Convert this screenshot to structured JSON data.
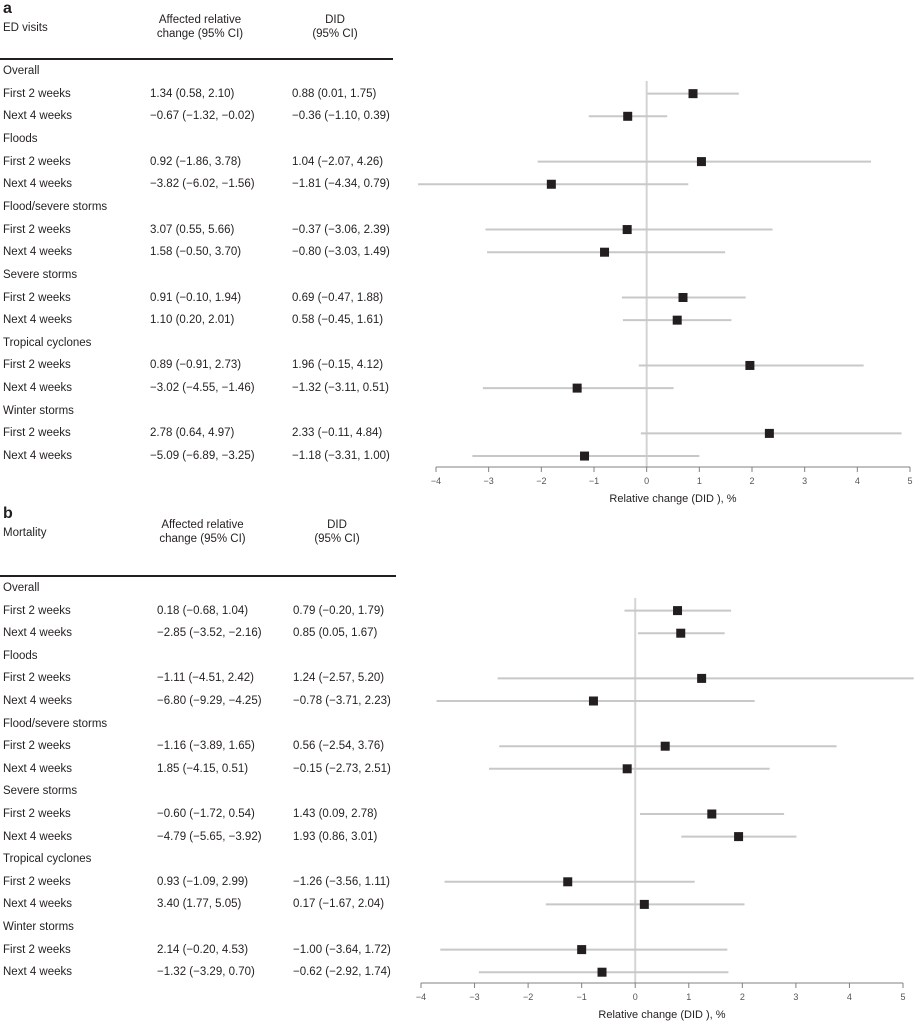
{
  "chart_data": [
    {
      "type": "forest",
      "panel": "a",
      "outcome": "ED visits",
      "columns": [
        "Affected relative change (95% CI)",
        "DID (95% CI)"
      ],
      "col1_header": [
        "Affected relative",
        "change (95% CI)"
      ],
      "col2_header": [
        "DID",
        "(95% CI)"
      ],
      "xlabel": "Relative change (DID ), %",
      "xlim": [
        -4,
        5
      ],
      "xticks": [
        "−4",
        "−3",
        "−2",
        "−1",
        "0",
        "1",
        "2",
        "3",
        "4",
        "5"
      ],
      "xtick_values": [
        -4,
        -3,
        -2,
        -1,
        0,
        1,
        2,
        3,
        4,
        5
      ],
      "reference_line": 0,
      "groups": [
        {
          "name": "Overall",
          "rows": [
            {
              "label": "First 2 weeks",
              "affected": "1.34 (0.58, 2.10)",
              "did": "0.88 (0.01, 1.75)",
              "est": 0.88,
              "lo": 0.01,
              "hi": 1.75
            },
            {
              "label": "Next 4 weeks",
              "affected": "−0.67 (−1.32, −0.02)",
              "did": "−0.36 (−1.10, 0.39)",
              "est": -0.36,
              "lo": -1.1,
              "hi": 0.39
            }
          ]
        },
        {
          "name": "Floods",
          "rows": [
            {
              "label": "First 2 weeks",
              "affected": "0.92 (−1.86, 3.78)",
              "did": "1.04 (−2.07, 4.26)",
              "est": 1.04,
              "lo": -2.07,
              "hi": 4.26
            },
            {
              "label": "Next 4 weeks",
              "affected": "−3.82 (−6.02, −1.56)",
              "did": "−1.81 (−4.34, 0.79)",
              "est": -1.81,
              "lo": -4.34,
              "hi": 0.79
            }
          ]
        },
        {
          "name": "Flood/severe storms",
          "rows": [
            {
              "label": "First 2 weeks",
              "affected": "3.07 (0.55, 5.66)",
              "did": "−0.37 (−3.06, 2.39)",
              "est": -0.37,
              "lo": -3.06,
              "hi": 2.39
            },
            {
              "label": "Next 4 weeks",
              "affected": "1.58 (−0.50, 3.70)",
              "did": "−0.80 (−3.03, 1.49)",
              "est": -0.8,
              "lo": -3.03,
              "hi": 1.49
            }
          ]
        },
        {
          "name": "Severe storms",
          "rows": [
            {
              "label": "First 2 weeks",
              "affected": "0.91 (−0.10, 1.94)",
              "did": "0.69 (−0.47, 1.88)",
              "est": 0.69,
              "lo": -0.47,
              "hi": 1.88
            },
            {
              "label": "Next 4 weeks",
              "affected": "1.10 (0.20, 2.01)",
              "did": "0.58 (−0.45, 1.61)",
              "est": 0.58,
              "lo": -0.45,
              "hi": 1.61
            }
          ]
        },
        {
          "name": "Tropical cyclones",
          "rows": [
            {
              "label": "First 2 weeks",
              "affected": "0.89 (−0.91, 2.73)",
              "did": "1.96 (−0.15, 4.12)",
              "est": 1.96,
              "lo": -0.15,
              "hi": 4.12
            },
            {
              "label": "Next 4 weeks",
              "affected": "−3.02 (−4.55, −1.46)",
              "did": "−1.32 (−3.11, 0.51)",
              "est": -1.32,
              "lo": -3.11,
              "hi": 0.51
            }
          ]
        },
        {
          "name": "Winter storms",
          "rows": [
            {
              "label": "First 2 weeks",
              "affected": "2.78 (0.64, 4.97)",
              "did": "2.33 (−0.11, 4.84)",
              "est": 2.33,
              "lo": -0.11,
              "hi": 4.84
            },
            {
              "label": "Next 4 weeks",
              "affected": "−5.09 (−6.89, −3.25)",
              "did": "−1.18 (−3.31, 1.00)",
              "est": -1.18,
              "lo": -3.31,
              "hi": 1.0
            }
          ]
        }
      ]
    },
    {
      "type": "forest",
      "panel": "b",
      "outcome": "Mortality",
      "columns": [
        "Affected relative change (95% CI)",
        "DID (95% CI)"
      ],
      "col1_header": [
        "Affected relative",
        "change (95% CI)"
      ],
      "col2_header": [
        "DID",
        "(95% CI)"
      ],
      "xlabel": "Relative change (DID ), %",
      "xlim": [
        -4,
        5
      ],
      "xticks": [
        "−4",
        "−3",
        "−2",
        "−1",
        "0",
        "1",
        "2",
        "3",
        "4",
        "5"
      ],
      "xtick_values": [
        -4,
        -3,
        -2,
        -1,
        0,
        1,
        2,
        3,
        4,
        5
      ],
      "reference_line": 0,
      "groups": [
        {
          "name": "Overall",
          "rows": [
            {
              "label": "First 2 weeks",
              "affected": "0.18 (−0.68, 1.04)",
              "did": "0.79 (−0.20, 1.79)",
              "est": 0.79,
              "lo": -0.2,
              "hi": 1.79
            },
            {
              "label": "Next 4 weeks",
              "affected": "−2.85 (−3.52, −2.16)",
              "did": "0.85 (0.05, 1.67)",
              "est": 0.85,
              "lo": 0.05,
              "hi": 1.67
            }
          ]
        },
        {
          "name": "Floods",
          "rows": [
            {
              "label": "First 2 weeks",
              "affected": "−1.11 (−4.51, 2.42)",
              "did": "1.24 (−2.57, 5.20)",
              "est": 1.24,
              "lo": -2.57,
              "hi": 5.2
            },
            {
              "label": "Next 4 weeks",
              "affected": "−6.80 (−9.29, −4.25)",
              "did": "−0.78 (−3.71, 2.23)",
              "est": -0.78,
              "lo": -3.71,
              "hi": 2.23
            }
          ]
        },
        {
          "name": "Flood/severe storms",
          "rows": [
            {
              "label": "First 2 weeks",
              "affected": "−1.16 (−3.89, 1.65)",
              "did": "0.56 (−2.54, 3.76)",
              "est": 0.56,
              "lo": -2.54,
              "hi": 3.76
            },
            {
              "label": "Next 4 weeks",
              "affected": "1.85 (−4.15, 0.51)",
              "did": "−0.15 (−2.73, 2.51)",
              "est": -0.15,
              "lo": -2.73,
              "hi": 2.51
            }
          ]
        },
        {
          "name": "Severe storms",
          "rows": [
            {
              "label": "First 2 weeks",
              "affected": "−0.60 (−1.72, 0.54)",
              "did": "1.43 (0.09, 2.78)",
              "est": 1.43,
              "lo": 0.09,
              "hi": 2.78
            },
            {
              "label": "Next 4 weeks",
              "affected": "−4.79 (−5.65, −3.92)",
              "did": "1.93 (0.86, 3.01)",
              "est": 1.93,
              "lo": 0.86,
              "hi": 3.01
            }
          ]
        },
        {
          "name": "Tropical cyclones",
          "rows": [
            {
              "label": "First 2 weeks",
              "affected": "0.93 (−1.09, 2.99)",
              "did": "−1.26 (−3.56, 1.11)",
              "est": -1.26,
              "lo": -3.56,
              "hi": 1.11
            },
            {
              "label": "Next 4 weeks",
              "affected": "3.40 (1.77, 5.05)",
              "did": "0.17 (−1.67, 2.04)",
              "est": 0.17,
              "lo": -1.67,
              "hi": 2.04
            }
          ]
        },
        {
          "name": "Winter storms",
          "rows": [
            {
              "label": "First 2 weeks",
              "affected": "2.14 (−0.20, 4.53)",
              "did": "−1.00 (−3.64, 1.72)",
              "est": -1.0,
              "lo": -3.64,
              "hi": 1.72
            },
            {
              "label": "Next 4 weeks",
              "affected": "−1.32 (−3.29, 0.70)",
              "did": "−0.62 (−2.92, 1.74)",
              "est": -0.62,
              "lo": -2.92,
              "hi": 1.74
            }
          ]
        }
      ]
    }
  ],
  "panels": [
    {
      "letter": "a"
    },
    {
      "letter": "b"
    }
  ],
  "colors": {
    "marker": "#231f20",
    "ci_line": "#c8c8c8",
    "reference_line": "#d4d4d4",
    "axis": "#808080",
    "text": "#231f20"
  }
}
